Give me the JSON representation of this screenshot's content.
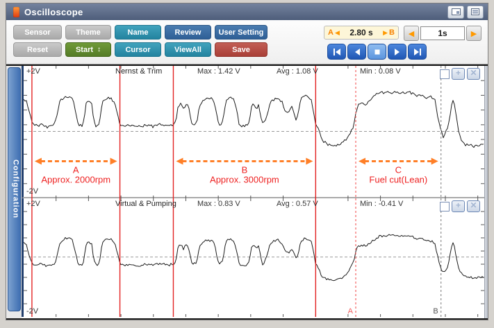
{
  "window": {
    "title": "Oscilloscope"
  },
  "toolbar": {
    "row1": [
      "Sensor",
      "Theme",
      "Name",
      "Review",
      "User Setting"
    ],
    "row2": [
      "Reset",
      "Start",
      "Cursor",
      "ViewAll",
      "Save"
    ],
    "start_spinner": "↕",
    "range": {
      "a": "A",
      "value": "2.80 s",
      "b": "B"
    },
    "timebase": "1s"
  },
  "icons": {
    "left_arrow": "◀",
    "right_arrow": "▶",
    "plus": "+",
    "close": "✕"
  },
  "sidebar": {
    "label": "Configuration"
  },
  "chart_data": [
    {
      "type": "line",
      "title": "Nernst & Trim",
      "ylim": [
        -2,
        2
      ],
      "scale_top": "+2V",
      "scale_bottom": "-2V",
      "stats": {
        "max": "Max : 1.42 V",
        "avg": "Avg : 1.08 V",
        "min": "Min : 0.08 V"
      },
      "show_cursor_labels": false,
      "cursors": [
        {
          "x": 0.018,
          "style": "solid"
        },
        {
          "x": 0.209,
          "style": "solid"
        },
        {
          "x": 0.325,
          "style": "solid"
        },
        {
          "x": 0.634,
          "style": "solid"
        },
        {
          "x": 0.721,
          "style": "dash-red",
          "label": "A"
        },
        {
          "x": 0.906,
          "style": "dash-gray",
          "label": "B"
        }
      ],
      "ranges": [
        {
          "label": "A",
          "sublabel": "Approx. 2000rpm",
          "from": 0.018,
          "to": 0.209
        },
        {
          "label": "B",
          "sublabel": "Approx. 3000rpm",
          "from": 0.325,
          "to": 0.634
        },
        {
          "label": "C",
          "sublabel": "Fuel cut(Lean)",
          "from": 0.721,
          "to": 0.906
        }
      ],
      "points": [
        [
          0,
          1.1
        ],
        [
          0.006,
          1.05
        ],
        [
          0.013,
          0.6
        ],
        [
          0.02,
          0.25
        ],
        [
          0.03,
          0.18
        ],
        [
          0.042,
          0.26
        ],
        [
          0.05,
          0.16
        ],
        [
          0.062,
          0.2
        ],
        [
          0.068,
          0.25
        ],
        [
          0.073,
          0.6
        ],
        [
          0.079,
          1.05
        ],
        [
          0.09,
          1.18
        ],
        [
          0.1,
          1.2
        ],
        [
          0.107,
          1.08
        ],
        [
          0.112,
          0.7
        ],
        [
          0.118,
          0.25
        ],
        [
          0.127,
          0.2
        ],
        [
          0.131,
          0.35
        ],
        [
          0.135,
          0.95
        ],
        [
          0.141,
          1.05
        ],
        [
          0.148,
          0.95
        ],
        [
          0.152,
          0.4
        ],
        [
          0.156,
          0.18
        ],
        [
          0.162,
          0.16
        ],
        [
          0.166,
          0.45
        ],
        [
          0.171,
          1.0
        ],
        [
          0.179,
          1.15
        ],
        [
          0.19,
          1.12
        ],
        [
          0.198,
          1.0
        ],
        [
          0.204,
          0.6
        ],
        [
          0.209,
          0.25
        ],
        [
          0.22,
          0.18
        ],
        [
          0.235,
          0.24
        ],
        [
          0.25,
          0.16
        ],
        [
          0.265,
          0.22
        ],
        [
          0.28,
          0.17
        ],
        [
          0.295,
          0.24
        ],
        [
          0.31,
          0.18
        ],
        [
          0.322,
          0.22
        ],
        [
          0.33,
          0.3
        ],
        [
          0.335,
          0.85
        ],
        [
          0.34,
          0.95
        ],
        [
          0.347,
          0.78
        ],
        [
          0.353,
          0.95
        ],
        [
          0.358,
          0.85
        ],
        [
          0.363,
          0.4
        ],
        [
          0.368,
          0.22
        ],
        [
          0.376,
          0.3
        ],
        [
          0.382,
          0.9
        ],
        [
          0.39,
          1.02
        ],
        [
          0.4,
          1.15
        ],
        [
          0.409,
          1.1
        ],
        [
          0.415,
          0.95
        ],
        [
          0.421,
          0.4
        ],
        [
          0.426,
          0.22
        ],
        [
          0.433,
          0.4
        ],
        [
          0.439,
          1.05
        ],
        [
          0.449,
          1.18
        ],
        [
          0.457,
          1.08
        ],
        [
          0.464,
          0.6
        ],
        [
          0.468,
          0.22
        ],
        [
          0.478,
          0.18
        ],
        [
          0.486,
          0.22
        ],
        [
          0.49,
          0.35
        ],
        [
          0.494,
          0.82
        ],
        [
          0.5,
          0.95
        ],
        [
          0.505,
          0.78
        ],
        [
          0.51,
          0.9
        ],
        [
          0.515,
          0.5
        ],
        [
          0.519,
          0.25
        ],
        [
          0.527,
          0.45
        ],
        [
          0.535,
          1.0
        ],
        [
          0.545,
          1.1
        ],
        [
          0.553,
          1.15
        ],
        [
          0.561,
          1.0
        ],
        [
          0.568,
          0.7
        ],
        [
          0.575,
          0.62
        ],
        [
          0.582,
          0.82
        ],
        [
          0.587,
          0.65
        ],
        [
          0.592,
          0.4
        ],
        [
          0.596,
          0.6
        ],
        [
          0.602,
          1.1
        ],
        [
          0.61,
          1.2
        ],
        [
          0.618,
          1.15
        ],
        [
          0.625,
          1.05
        ],
        [
          0.63,
          0.6
        ],
        [
          0.634,
          0.22
        ],
        [
          0.64,
          0.05
        ],
        [
          0.648,
          -0.3
        ],
        [
          0.66,
          -0.45
        ],
        [
          0.675,
          -0.5
        ],
        [
          0.69,
          -0.42
        ],
        [
          0.7,
          -0.3
        ],
        [
          0.707,
          -0.12
        ],
        [
          0.713,
          0.05
        ],
        [
          0.718,
          0.3
        ],
        [
          0.722,
          0.7
        ],
        [
          0.727,
          0.9
        ],
        [
          0.735,
          0.95
        ],
        [
          0.742,
          0.9
        ],
        [
          0.748,
          1.0
        ],
        [
          0.755,
          1.1
        ],
        [
          0.765,
          1.25
        ],
        [
          0.775,
          1.32
        ],
        [
          0.79,
          1.35
        ],
        [
          0.81,
          1.33
        ],
        [
          0.83,
          1.34
        ],
        [
          0.845,
          1.3
        ],
        [
          0.855,
          1.22
        ],
        [
          0.865,
          1.26
        ],
        [
          0.875,
          1.15
        ],
        [
          0.885,
          1.18
        ],
        [
          0.893,
          1.05
        ],
        [
          0.898,
          0.6
        ],
        [
          0.903,
          0.2
        ],
        [
          0.908,
          -0.05
        ],
        [
          0.912,
          -0.2
        ],
        [
          0.917,
          0.0
        ],
        [
          0.921,
          0.1
        ],
        [
          0.926,
          0.6
        ],
        [
          0.931,
          1.1
        ],
        [
          0.935,
          0.95
        ],
        [
          0.94,
          0.4
        ],
        [
          0.945,
          -0.1
        ],
        [
          0.952,
          -0.35
        ],
        [
          0.96,
          -0.45
        ],
        [
          0.975,
          -0.5
        ],
        [
          1,
          -0.45
        ]
      ]
    },
    {
      "type": "line",
      "title": "Virtual & Pumping",
      "ylim": [
        -2,
        2
      ],
      "scale_top": "+2V",
      "scale_bottom": "-2V",
      "stats": {
        "max": "Max : 0.83 V",
        "avg": "Avg : 0.57 V",
        "min": "Min : -0.41 V"
      },
      "show_cursor_labels": true,
      "cursors": [
        {
          "x": 0.018,
          "style": "solid"
        },
        {
          "x": 0.209,
          "style": "solid"
        },
        {
          "x": 0.325,
          "style": "solid"
        },
        {
          "x": 0.634,
          "style": "solid"
        },
        {
          "x": 0.721,
          "style": "dash-red",
          "label": "A"
        },
        {
          "x": 0.906,
          "style": "dash-gray",
          "label": "B"
        }
      ],
      "ranges": [],
      "points": [
        [
          0,
          0.55
        ],
        [
          0.006,
          0.5
        ],
        [
          0.013,
          0.0
        ],
        [
          0.02,
          -0.28
        ],
        [
          0.03,
          -0.33
        ],
        [
          0.042,
          -0.25
        ],
        [
          0.05,
          -0.35
        ],
        [
          0.062,
          -0.3
        ],
        [
          0.068,
          -0.25
        ],
        [
          0.073,
          0.1
        ],
        [
          0.079,
          0.55
        ],
        [
          0.09,
          0.72
        ],
        [
          0.1,
          0.75
        ],
        [
          0.107,
          0.62
        ],
        [
          0.112,
          0.2
        ],
        [
          0.118,
          -0.25
        ],
        [
          0.127,
          -0.3
        ],
        [
          0.131,
          -0.15
        ],
        [
          0.135,
          0.45
        ],
        [
          0.141,
          0.58
        ],
        [
          0.148,
          0.48
        ],
        [
          0.152,
          -0.05
        ],
        [
          0.156,
          -0.3
        ],
        [
          0.162,
          -0.33
        ],
        [
          0.166,
          -0.05
        ],
        [
          0.171,
          0.55
        ],
        [
          0.179,
          0.7
        ],
        [
          0.19,
          0.68
        ],
        [
          0.198,
          0.55
        ],
        [
          0.204,
          0.1
        ],
        [
          0.209,
          -0.25
        ],
        [
          0.22,
          -0.32
        ],
        [
          0.235,
          -0.26
        ],
        [
          0.25,
          -0.33
        ],
        [
          0.265,
          -0.28
        ],
        [
          0.28,
          -0.32
        ],
        [
          0.295,
          -0.26
        ],
        [
          0.31,
          -0.31
        ],
        [
          0.322,
          -0.28
        ],
        [
          0.33,
          -0.2
        ],
        [
          0.335,
          0.38
        ],
        [
          0.34,
          0.48
        ],
        [
          0.347,
          0.32
        ],
        [
          0.353,
          0.48
        ],
        [
          0.358,
          0.4
        ],
        [
          0.363,
          -0.1
        ],
        [
          0.368,
          -0.3
        ],
        [
          0.376,
          -0.2
        ],
        [
          0.382,
          0.42
        ],
        [
          0.39,
          0.55
        ],
        [
          0.4,
          0.68
        ],
        [
          0.409,
          0.62
        ],
        [
          0.415,
          0.48
        ],
        [
          0.421,
          -0.1
        ],
        [
          0.426,
          -0.3
        ],
        [
          0.433,
          -0.1
        ],
        [
          0.439,
          0.58
        ],
        [
          0.449,
          0.7
        ],
        [
          0.457,
          0.6
        ],
        [
          0.464,
          0.1
        ],
        [
          0.468,
          -0.3
        ],
        [
          0.478,
          -0.33
        ],
        [
          0.486,
          -0.28
        ],
        [
          0.49,
          -0.15
        ],
        [
          0.494,
          0.35
        ],
        [
          0.5,
          0.48
        ],
        [
          0.505,
          0.3
        ],
        [
          0.51,
          0.42
        ],
        [
          0.515,
          0.0
        ],
        [
          0.519,
          -0.28
        ],
        [
          0.527,
          -0.05
        ],
        [
          0.535,
          0.52
        ],
        [
          0.545,
          0.62
        ],
        [
          0.553,
          0.68
        ],
        [
          0.561,
          0.52
        ],
        [
          0.568,
          0.22
        ],
        [
          0.575,
          0.15
        ],
        [
          0.582,
          0.35
        ],
        [
          0.587,
          0.18
        ],
        [
          0.592,
          -0.1
        ],
        [
          0.596,
          0.1
        ],
        [
          0.602,
          0.62
        ],
        [
          0.61,
          0.72
        ],
        [
          0.618,
          0.68
        ],
        [
          0.625,
          0.58
        ],
        [
          0.63,
          0.1
        ],
        [
          0.634,
          -0.28
        ],
        [
          0.64,
          -0.45
        ],
        [
          0.648,
          -0.75
        ],
        [
          0.66,
          -0.85
        ],
        [
          0.675,
          -0.9
        ],
        [
          0.69,
          -0.82
        ],
        [
          0.7,
          -0.7
        ],
        [
          0.707,
          -0.5
        ],
        [
          0.713,
          -0.3
        ],
        [
          0.718,
          -0.05
        ],
        [
          0.722,
          0.3
        ],
        [
          0.727,
          0.42
        ],
        [
          0.735,
          0.45
        ],
        [
          0.742,
          0.42
        ],
        [
          0.748,
          0.5
        ],
        [
          0.755,
          0.6
        ],
        [
          0.765,
          0.72
        ],
        [
          0.775,
          0.8
        ],
        [
          0.79,
          0.85
        ],
        [
          0.81,
          0.83
        ],
        [
          0.83,
          0.84
        ],
        [
          0.845,
          0.78
        ],
        [
          0.855,
          0.68
        ],
        [
          0.865,
          0.72
        ],
        [
          0.875,
          0.6
        ],
        [
          0.885,
          0.62
        ],
        [
          0.893,
          0.5
        ],
        [
          0.898,
          0.1
        ],
        [
          0.903,
          -0.3
        ],
        [
          0.908,
          -0.5
        ],
        [
          0.912,
          -0.62
        ],
        [
          0.917,
          -0.45
        ],
        [
          0.921,
          -0.38
        ],
        [
          0.926,
          0.1
        ],
        [
          0.931,
          0.6
        ],
        [
          0.935,
          0.45
        ],
        [
          0.94,
          -0.1
        ],
        [
          0.945,
          -0.5
        ],
        [
          0.952,
          -0.65
        ],
        [
          0.96,
          -0.75
        ],
        [
          0.975,
          -0.8
        ],
        [
          1,
          -0.78
        ]
      ]
    }
  ]
}
